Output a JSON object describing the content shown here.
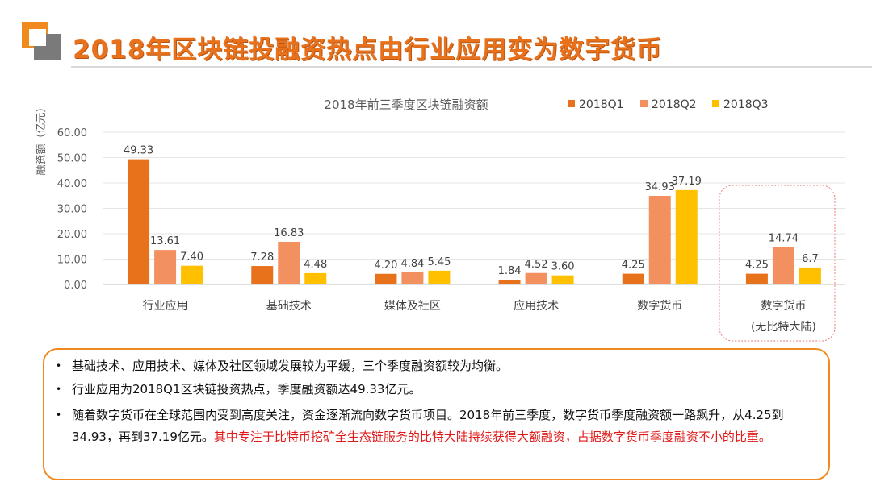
{
  "title": "2018年区块链投融资热点由行业应用变为数字货币",
  "chart_data": {
    "type": "bar",
    "title": "2018年前三季度区块链融资额",
    "ylabel": "融资额（亿元）",
    "xlabel": "",
    "ylim": [
      0,
      60
    ],
    "yticks": [
      "0.00",
      "10.00",
      "20.00",
      "30.00",
      "40.00",
      "50.00",
      "60.00"
    ],
    "categories": [
      "行业应用",
      "基础技术",
      "媒体及社区",
      "应用技术",
      "数字货币",
      "数字货币"
    ],
    "category_sublabels": [
      "",
      "",
      "",
      "",
      "",
      "(无比特大陆)"
    ],
    "series": [
      {
        "name": "2018Q1",
        "color": "#e8711c",
        "values": [
          49.33,
          7.28,
          4.2,
          1.84,
          4.25,
          4.25
        ],
        "labels": [
          "49.33",
          "7.28",
          "4.20",
          "1.84",
          "4.25",
          "4.25"
        ]
      },
      {
        "name": "2018Q2",
        "color": "#f29060",
        "values": [
          13.61,
          16.83,
          4.84,
          4.52,
          34.93,
          14.74
        ],
        "labels": [
          "13.61",
          "16.83",
          "4.84",
          "4.52",
          "34.93",
          "14.74"
        ]
      },
      {
        "name": "2018Q3",
        "color": "#ffc000",
        "values": [
          7.4,
          4.48,
          5.45,
          3.6,
          37.19,
          6.7
        ],
        "labels": [
          "7.40",
          "4.48",
          "5.45",
          "3.60",
          "37.19",
          "6.7"
        ]
      }
    ],
    "legend_position": "top-right",
    "grid": true
  },
  "notes": {
    "b1": "基础技术、应用技术、媒体及社区领域发展较为平缓，三个季度融资额较为均衡。",
    "b2": "行业应用为2018Q1区块链投资热点，季度融资额达49.33亿元。",
    "b3_black": "随着数字货币在全球范围内受到高度关注，资金逐渐流向数字货币项目。2018年前三季度，数字货币季度融资额一路飙升，从4.25到34.93，再到37.19亿元。",
    "b3_red": "其中专注于比特币挖矿全生态链服务的比特大陆持续获得大额融资，占据数字货币季度融资不小的比重。"
  }
}
